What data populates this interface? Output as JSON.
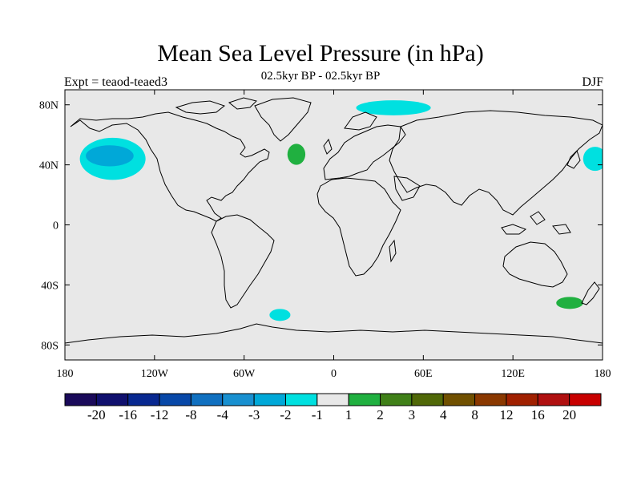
{
  "title": "Mean Sea Level Pressure (in hPa)",
  "subtitle": "02.5kyr BP - 02.5kyr BP",
  "expt_label": "Expt = teaod-teaed3",
  "season": "DJF",
  "map": {
    "lon_range": [
      -180,
      180
    ],
    "lat_range": [
      -90,
      90
    ],
    "lat_ticks": [
      {
        "value": 80,
        "label": "80N"
      },
      {
        "value": 40,
        "label": "40N"
      },
      {
        "value": 0,
        "label": "0"
      },
      {
        "value": -40,
        "label": "40S"
      },
      {
        "value": -80,
        "label": "80S"
      }
    ],
    "lon_ticks": [
      {
        "value": -180,
        "label": "180"
      },
      {
        "value": -120,
        "label": "120W"
      },
      {
        "value": -60,
        "label": "60W"
      },
      {
        "value": 0,
        "label": "0"
      },
      {
        "value": 60,
        "label": "60E"
      },
      {
        "value": 120,
        "label": "120E"
      },
      {
        "value": 180,
        "label": "180"
      }
    ],
    "background_color": "#e8e8e8",
    "anomalies": [
      {
        "region": "north-pacific",
        "lon": -148,
        "lat": 44,
        "rlon": 22,
        "rlat": 14,
        "level": "-1",
        "color": "#00e0e0"
      },
      {
        "region": "north-pacific-core",
        "lon": -150,
        "lat": 46,
        "rlon": 16,
        "rlat": 7,
        "level": "-2",
        "color": "#00a8d8"
      },
      {
        "region": "greenland-east",
        "lon": 40,
        "lat": 78,
        "rlon": 25,
        "rlat": 5,
        "level": "-1",
        "color": "#00e0e0"
      },
      {
        "region": "east-asia",
        "lon": 175,
        "lat": 44,
        "rlon": 8,
        "rlat": 8,
        "level": "-1",
        "color": "#00e0e0"
      },
      {
        "region": "south-atlantic",
        "lon": -36,
        "lat": -60,
        "rlon": 7,
        "rlat": 4,
        "level": "-1",
        "color": "#00e0e0"
      },
      {
        "region": "north-atlantic",
        "lon": -25,
        "lat": 47,
        "rlon": 6,
        "rlat": 7,
        "level": "1",
        "color": "#20b040"
      },
      {
        "region": "tasman-sea",
        "lon": 158,
        "lat": -52,
        "rlon": 9,
        "rlat": 4,
        "level": "1",
        "color": "#20b040"
      }
    ]
  },
  "colorbar": {
    "colors": [
      "#1a0a5a",
      "#10106e",
      "#082890",
      "#0848a8",
      "#1070c0",
      "#1890d0",
      "#00a8d8",
      "#00e0e0",
      "#e8e8e8",
      "#20b040",
      "#408018",
      "#506808",
      "#705000",
      "#8a3800",
      "#a02000",
      "#b01010",
      "#c80000"
    ],
    "labels": [
      "-20",
      "-16",
      "-12",
      "-8",
      "-4",
      "-3",
      "-2",
      "-1",
      "1",
      "2",
      "3",
      "4",
      "8",
      "12",
      "16",
      "20"
    ]
  }
}
